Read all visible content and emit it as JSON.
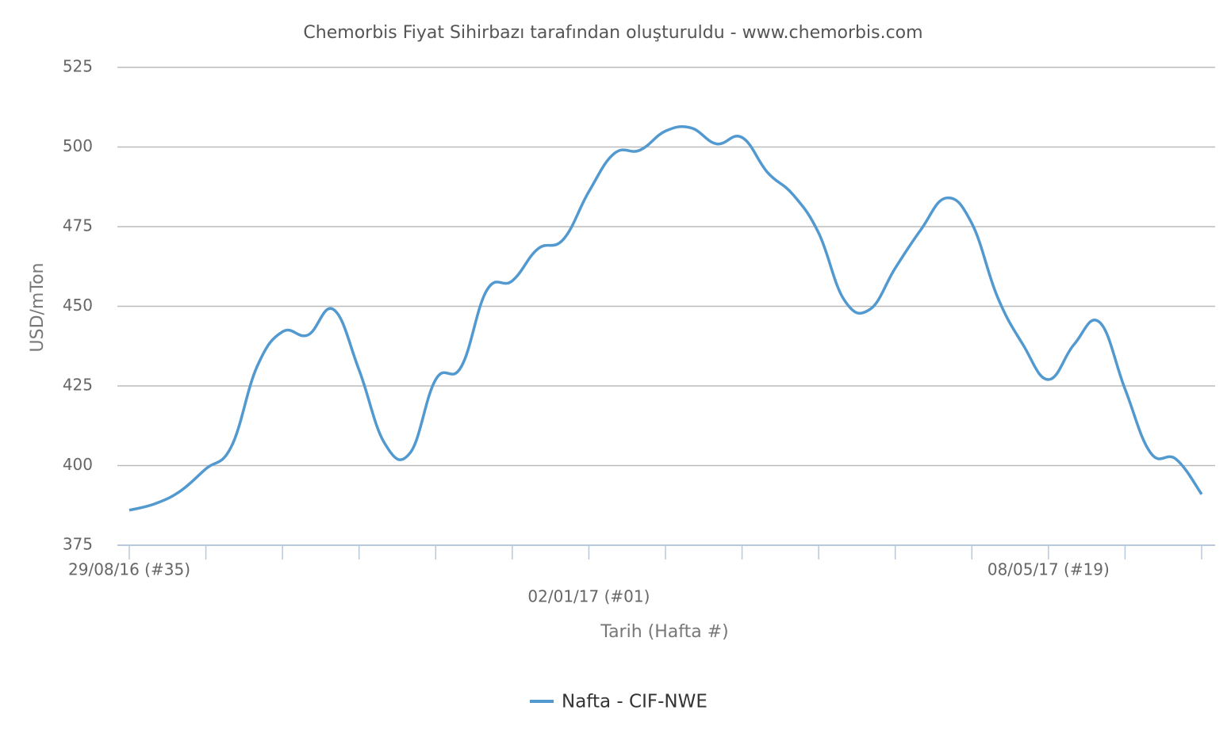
{
  "chart_data": {
    "type": "line",
    "title": "Chemorbis Fiyat Sihirbazı tarafından oluşturuldu - www.chemorbis.com",
    "y_label": "USD/mTon",
    "x_label": "Tarih (Hafta #)",
    "categories": [
      "29/08/16 (#35)",
      null,
      null,
      null,
      null,
      null,
      null,
      null,
      null,
      null,
      null,
      null,
      null,
      null,
      null,
      null,
      null,
      null,
      "02/01/17 (#01)",
      null,
      null,
      null,
      null,
      null,
      null,
      null,
      null,
      null,
      null,
      null,
      null,
      null,
      null,
      null,
      null,
      null,
      "08/05/17 (#19)",
      null,
      null,
      null,
      null,
      null,
      null
    ],
    "series": [
      {
        "name": "Nafta - CIF-NWE",
        "color": "#5299cf",
        "values": [
          386,
          388,
          392,
          399,
          406,
          431,
          442,
          441,
          449,
          430,
          407,
          404,
          427,
          431,
          455,
          458,
          468,
          471,
          486,
          498,
          499,
          505,
          506,
          501,
          503,
          492,
          485,
          473,
          452,
          449,
          462,
          474,
          484,
          476,
          453,
          438,
          427,
          438,
          445,
          424,
          404,
          402,
          391
        ]
      }
    ],
    "ylim": [
      375,
      525
    ],
    "yticks": [
      375,
      400,
      425,
      450,
      475,
      500,
      525
    ],
    "grid": true,
    "legend": "bottom"
  }
}
